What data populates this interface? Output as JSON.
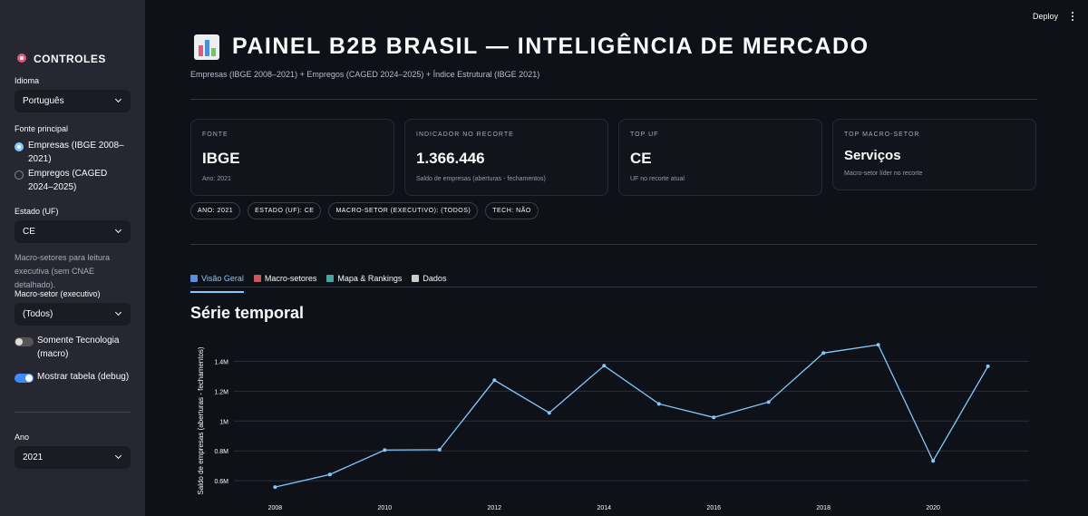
{
  "header": {
    "deploy": "Deploy"
  },
  "sidebar": {
    "title": "CONTROLES",
    "language_label": "Idioma",
    "language": "Português",
    "source_label": "Fonte principal",
    "source_options": [
      "Empresas (IBGE 2008–2021)",
      "Empregos (CAGED 2024–2025)"
    ],
    "source_selected": 0,
    "state_label": "Estado (UF)",
    "state": "CE",
    "macro_note": "Macro-setores para leitura executiva (sem CNAE detalhado).",
    "macro_label": "Macro-setor (executivo)",
    "macro": "(Todos)",
    "toggles": [
      {
        "label": "Somente Tecnologia (macro)",
        "on": false
      },
      {
        "label": "Mostrar tabela (debug)",
        "on": true
      }
    ],
    "year_label": "Ano",
    "year": "2021"
  },
  "main": {
    "title": "PAINEL B2B BRASIL — INTELIGÊNCIA DE MERCADO",
    "subtitle": "Empresas (IBGE 2008–2021) + Empregos (CAGED 2024–2025) + Índice Estrutural (IBGE 2021)",
    "cards": [
      {
        "label": "FONTE",
        "value": "IBGE",
        "note": "Ano: 2021"
      },
      {
        "label": "INDICADOR NO RECORTE",
        "value": "1.366.446",
        "note": "Saldo de empresas (aberturas - fechamentos)"
      },
      {
        "label": "TOP UF",
        "value": "CE",
        "note": "UF no recorte atual"
      },
      {
        "label": "TOP MACRO-SETOR",
        "value": "Serviços",
        "note": "Macro-setor líder no recorte"
      }
    ],
    "chips": [
      "ANO: 2021",
      "ESTADO (UF): CE",
      "MACRO-SETOR (EXECUTIVO): (TODOS)",
      "TECH: NÃO"
    ],
    "tabs": [
      "Visão Geral",
      "Macro-setores",
      "Mapa & Rankings",
      "Dados"
    ],
    "active_tab": 0,
    "section_title": "Série temporal"
  },
  "chart_data": {
    "type": "line",
    "y_label": "Saldo de empresas (aberturas - fechamentos)",
    "color": "#83c9ff",
    "x": [
      2008,
      2009,
      2010,
      2011,
      2012,
      2013,
      2014,
      2015,
      2016,
      2017,
      2018,
      2019,
      2020,
      2021
    ],
    "values": [
      558000,
      642000,
      806000,
      808000,
      1273000,
      1055000,
      1370000,
      1115000,
      1024000,
      1127000,
      1455000,
      1510000,
      733000,
      1366446
    ],
    "xlim": [
      2007.25,
      2021.75
    ],
    "xticks": [
      2008,
      2010,
      2012,
      2014,
      2016,
      2018,
      2020
    ],
    "ylim": [
      510000,
      1560000
    ],
    "yticks": [
      {
        "value": 600000,
        "label": "0.6M"
      },
      {
        "value": 800000,
        "label": "0.8M"
      },
      {
        "value": 1000000,
        "label": "1M"
      },
      {
        "value": 1200000,
        "label": "1.2M"
      },
      {
        "value": 1400000,
        "label": "1.4M"
      }
    ],
    "grid": true
  }
}
